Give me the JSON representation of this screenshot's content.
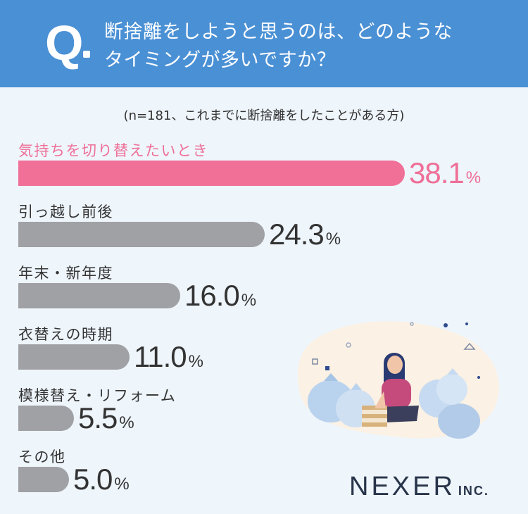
{
  "header": {
    "q_mark": "Q",
    "question_line1": "断捨離をしようと思うのは、どのような",
    "question_line2": "タイミングが多いですか？"
  },
  "note": "(n=181、これまでに断捨離をしたことがある方)",
  "chart_data": {
    "type": "bar",
    "orientation": "horizontal",
    "categories": [
      "気持ちを切り替えたいとき",
      "引っ越し前後",
      "年末・新年度",
      "衣替えの時期",
      "模様替え・リフォーム",
      "その他"
    ],
    "values": [
      38.1,
      24.3,
      16.0,
      11.0,
      5.5,
      5.0
    ],
    "value_labels": [
      "38.1",
      "24.3",
      "16.0",
      "11.0",
      "5.5",
      "5.0"
    ],
    "unit": "%",
    "highlight_index": 0,
    "colors": {
      "highlight": "#f07097",
      "default": "#a0a1a5",
      "highlight_text": "#ef6f97"
    }
  },
  "logo": {
    "main": "NEXER",
    "suffix": "INC."
  }
}
